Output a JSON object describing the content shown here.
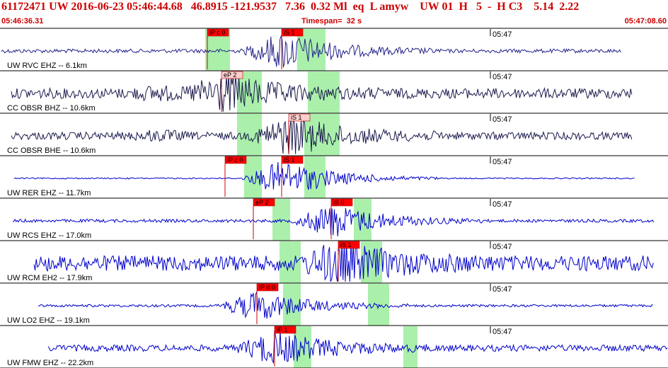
{
  "header": {
    "event_line": "61172471 UW 2016-06-23 05:46:44.68   46.8915 -121.9537   7.36  0.32 Ml  eq  L amyw    UW 01  H   5  -  H C3    5.14  2.22",
    "start_time": "05:46:36.31",
    "timespan": "Timespan=  32 s",
    "end_time": "05:47:08.60"
  },
  "time_mark_label": "05:47",
  "colors": {
    "header_text": "#cc0000",
    "trace_blue": "#0000cc",
    "trace_dark": "#1a1a4d",
    "pick_fill": "#ff0000",
    "pick_light_fill": "#ffcccc",
    "window_green": "#aaf0aa",
    "divider": "#000000"
  },
  "traces": [
    {
      "label": "UW RVC EHZ -- 6.1km",
      "color": "dark_blue",
      "amplitude": 0.15,
      "burst_amplitude": 1.0,
      "picks": [
        {
          "label": "iP c 0",
          "style": "red",
          "t": 4.45
        },
        {
          "label": "iS 1",
          "style": "red",
          "t": 5.5
        }
      ],
      "windows": [
        [
          4.4,
          4.75
        ],
        [
          5.7,
          6.1
        ]
      ]
    },
    {
      "label": "CC OBSR BHZ -- 10.6km",
      "color": "dark",
      "amplitude": 0.4,
      "burst_amplitude": 0.95,
      "picks": [
        {
          "label": "eP 2",
          "style": "light",
          "t": 4.65
        }
      ],
      "windows": [
        [
          4.85,
          5.2
        ],
        [
          5.85,
          6.3
        ]
      ]
    },
    {
      "label": "CC OBSR BHE -- 10.6km",
      "color": "dark",
      "amplitude": 0.3,
      "burst_amplitude": 1.0,
      "picks": [
        {
          "label": "iS 1",
          "style": "light",
          "t": 5.6
        }
      ],
      "windows": [
        [
          4.85,
          5.2
        ],
        [
          5.8,
          6.3
        ]
      ]
    },
    {
      "label": "UW RER EHZ -- 11.7km",
      "color": "blue",
      "amplitude": 0.05,
      "burst_amplitude": 1.0,
      "picks": [
        {
          "label": "iP c 0",
          "style": "red",
          "t": 4.7
        },
        {
          "label": "iS 1",
          "style": "red",
          "t": 5.5
        }
      ],
      "windows": [
        [
          4.95,
          5.2
        ],
        [
          5.8,
          6.1
        ]
      ]
    },
    {
      "label": "UW RCS EHZ -- 17.0km",
      "color": "blue",
      "amplitude": 0.12,
      "burst_amplitude": 0.9,
      "picks": [
        {
          "label": "eP 2",
          "style": "red",
          "t": 5.1
        },
        {
          "label": "iS 0",
          "style": "red",
          "t": 6.2
        }
      ],
      "windows": [
        [
          5.35,
          5.6
        ],
        [
          6.5,
          6.75
        ]
      ]
    },
    {
      "label": "UW RCM EH2 -- 17.9km",
      "color": "blue",
      "amplitude": 0.6,
      "burst_amplitude": 1.0,
      "picks": [
        {
          "label": "iS 1",
          "style": "red",
          "t": 6.3
        }
      ],
      "windows": [
        [
          5.45,
          5.75
        ],
        [
          6.6,
          6.9
        ]
      ]
    },
    {
      "label": "UW LO2 EHZ -- 19.1km",
      "color": "blue",
      "amplitude": 0.1,
      "burst_amplitude": 0.8,
      "picks": [
        {
          "label": "iP d 0",
          "style": "red",
          "t": 5.15
        }
      ],
      "windows": [
        [
          5.5,
          5.75
        ],
        [
          6.7,
          7.0
        ]
      ]
    },
    {
      "label": "UW FMW EHZ -- 22.2km",
      "color": "blue",
      "amplitude": 0.25,
      "burst_amplitude": 0.85,
      "picks": [
        {
          "label": "iP 1",
          "style": "red",
          "t": 5.4
        }
      ],
      "windows": [
        [
          5.65,
          5.9
        ],
        [
          7.2,
          7.4
        ]
      ]
    }
  ]
}
